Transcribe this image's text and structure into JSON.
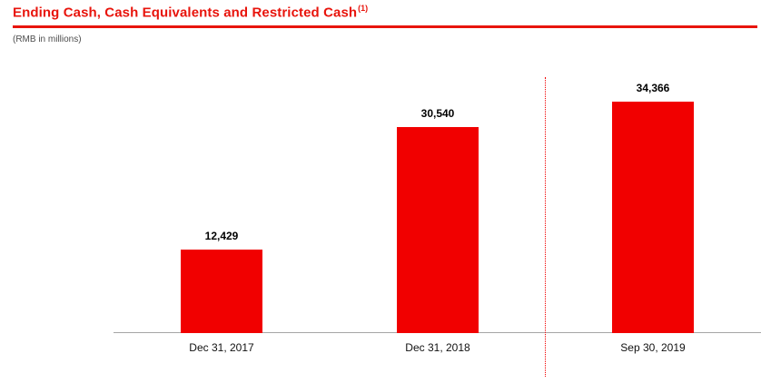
{
  "header": {
    "title": "Ending Cash, Cash Equivalents and Restricted Cash",
    "footnote_marker": "(1)",
    "units": "(RMB in millions)",
    "accent_color": "#e8140c"
  },
  "chart_data": {
    "type": "bar",
    "title": "Ending Cash, Cash Equivalents and Restricted Cash",
    "subtitle": "(RMB in millions)",
    "categories": [
      "Dec 31, 2017",
      "Dec 31, 2018",
      "Sep 30, 2019"
    ],
    "values": [
      12429,
      30540,
      34366
    ],
    "value_labels": [
      "12,429",
      "30,540",
      "34,366"
    ],
    "xlabel": "",
    "ylabel": "RMB in millions",
    "ylim": [
      0,
      38000
    ],
    "grid": false,
    "legend": "none",
    "bar_color": "#f10000",
    "divider_after_category_index": 1
  }
}
